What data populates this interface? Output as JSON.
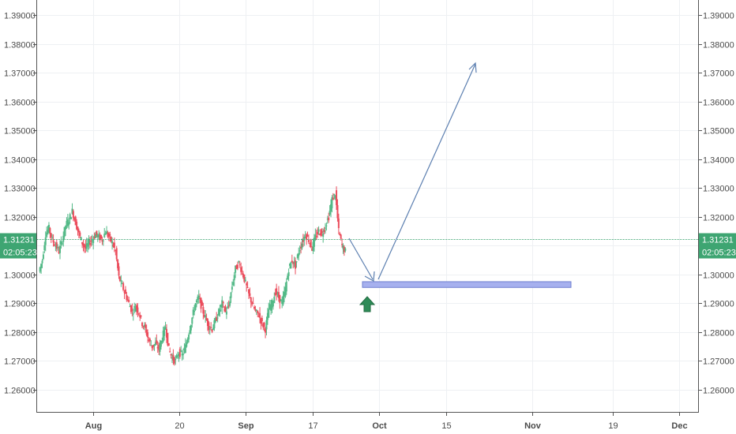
{
  "chart_data": {
    "type": "candlestick",
    "ylim": [
      1.2535,
      1.3955
    ],
    "y_ticks": [
      "1.26000",
      "1.27000",
      "1.28000",
      "1.29000",
      "1.30000",
      "1.31000",
      "1.32000",
      "1.33000",
      "1.34000",
      "1.35000",
      "1.36000",
      "1.37000",
      "1.38000",
      "1.39000"
    ],
    "x_ticks": [
      {
        "label": "Aug",
        "bold": true
      },
      {
        "label": "20",
        "bold": false
      },
      {
        "label": "Sep",
        "bold": true
      },
      {
        "label": "17",
        "bold": false
      },
      {
        "label": "Oct",
        "bold": true
      },
      {
        "label": "15",
        "bold": false
      },
      {
        "label": "Nov",
        "bold": true
      },
      {
        "label": "19",
        "bold": false
      },
      {
        "label": "Dec",
        "bold": true
      }
    ],
    "current_price": "1.31231",
    "current_price_value": 1.31231,
    "countdown": "02:05:23",
    "close_path": [
      1.301,
      1.305,
      1.314,
      1.316,
      1.312,
      1.31,
      1.308,
      1.312,
      1.317,
      1.319,
      1.322,
      1.318,
      1.314,
      1.311,
      1.309,
      1.311,
      1.312,
      1.314,
      1.313,
      1.312,
      1.315,
      1.313,
      1.311,
      1.308,
      1.299,
      1.296,
      1.293,
      1.29,
      1.287,
      1.289,
      1.287,
      1.283,
      1.281,
      1.277,
      1.275,
      1.276,
      1.274,
      1.278,
      1.282,
      1.274,
      1.271,
      1.27,
      1.273,
      1.272,
      1.275,
      1.28,
      1.285,
      1.29,
      1.292,
      1.288,
      1.285,
      1.282,
      1.281,
      1.284,
      1.287,
      1.29,
      1.287,
      1.289,
      1.296,
      1.302,
      1.304,
      1.301,
      1.297,
      1.293,
      1.29,
      1.287,
      1.286,
      1.283,
      1.281,
      1.288,
      1.29,
      1.294,
      1.292,
      1.29,
      1.295,
      1.302,
      1.305,
      1.303,
      1.308,
      1.311,
      1.314,
      1.312,
      1.309,
      1.313,
      1.315,
      1.314,
      1.317,
      1.32,
      1.326,
      1.328,
      1.315,
      1.31,
      1.308
    ],
    "candle_colors": {
      "up": "#53b987",
      "down": "#eb4d5c"
    },
    "zone": {
      "from_value": 1.2975,
      "to_value": 1.2955,
      "color": "#a6b0ee"
    },
    "arrows_color": "#5c7fb0",
    "up_marker_color": "#2e8b57",
    "price_tag_color": "#3ea572"
  }
}
